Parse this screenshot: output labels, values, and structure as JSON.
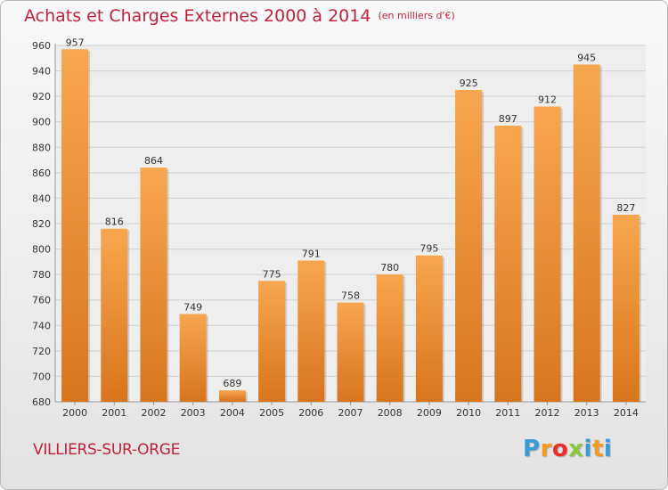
{
  "header": {
    "title": "Achats et Charges Externes 2000 à 2014",
    "unit": "(en milliers d'€)"
  },
  "footer": {
    "city": "VILLIERS-SUR-ORGE",
    "logo_letters": [
      "P",
      "r",
      "o",
      "x",
      "i",
      "t",
      "i"
    ],
    "logo_colors": [
      "#3a9bd8",
      "#f39a1f",
      "#e8302c",
      "#8cc63f",
      "#3a9bd8",
      "#f39a1f",
      "#3a9bd8"
    ]
  },
  "colors": {
    "bar_top": "#f7a64f",
    "bar_bottom": "#d8751e",
    "grid": "#d0d0d0",
    "axis_text": "#333333",
    "title": "#c0223c"
  },
  "chart_data": {
    "type": "bar",
    "title": "Achats et Charges Externes 2000 à 2014",
    "subtitle": "(en milliers d'€)",
    "categories": [
      "2000",
      "2001",
      "2002",
      "2003",
      "2004",
      "2005",
      "2006",
      "2007",
      "2008",
      "2009",
      "2010",
      "2011",
      "2012",
      "2013",
      "2014"
    ],
    "values": [
      957,
      816,
      864,
      749,
      689,
      775,
      791,
      758,
      780,
      795,
      925,
      897,
      912,
      945,
      827
    ],
    "ylim": [
      680,
      960
    ],
    "yticks": [
      680,
      700,
      720,
      740,
      760,
      780,
      800,
      820,
      840,
      860,
      880,
      900,
      920,
      940,
      960
    ],
    "grid": true,
    "xlabel": "",
    "ylabel": ""
  }
}
